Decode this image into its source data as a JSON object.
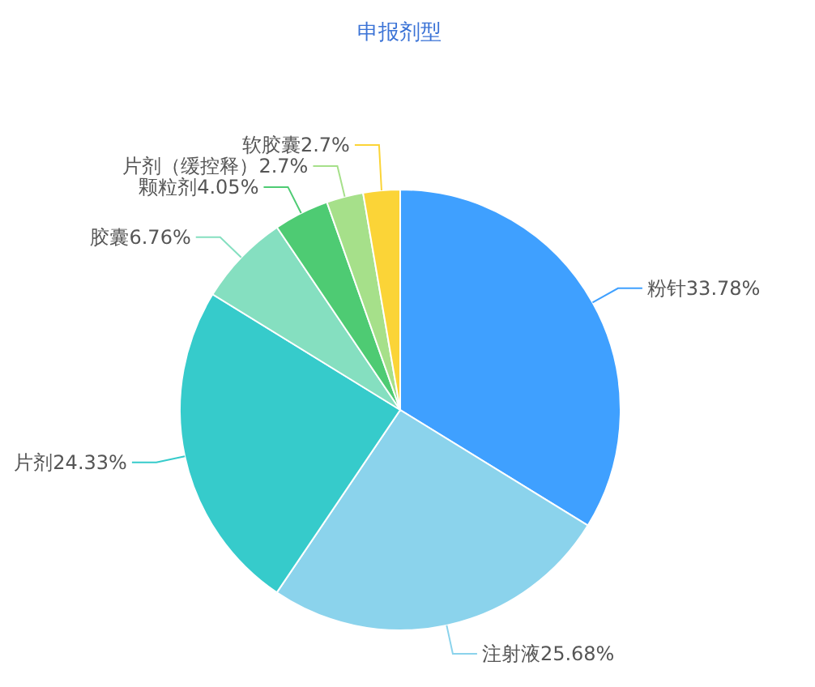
{
  "chart_data": {
    "type": "pie",
    "title": "申报剂型",
    "categories": [
      "粉针",
      "注射液",
      "片剂",
      "胶囊",
      "颗粒剂",
      "片剂（缓控释）",
      "软胶囊"
    ],
    "values": [
      33.78,
      25.68,
      24.33,
      6.76,
      4.05,
      2.7,
      2.7
    ],
    "value_labels": [
      "33.78%",
      "25.68%",
      "24.33%",
      "6.76%",
      "4.05%",
      "2.7%",
      "2.7%"
    ],
    "colors": [
      "#3fa0ff",
      "#8bd3ec",
      "#36cbcb",
      "#85dfc0",
      "#4ecb73",
      "#a6e08a",
      "#fbd437"
    ]
  }
}
